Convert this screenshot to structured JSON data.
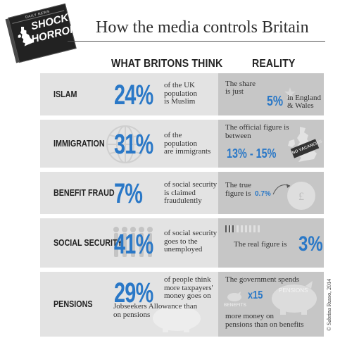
{
  "header": {
    "logo": {
      "paper_label": "DAILY NEWS",
      "shock": "SHOCK!",
      "horror": "HORROR!"
    },
    "title": "How the media controls Britain"
  },
  "columns": {
    "left": "WHAT BRITONS THINK",
    "right": "REALITY"
  },
  "rows": [
    {
      "category": "ISLAM",
      "think_pct": "24%",
      "think_desc": [
        "of the UK",
        "population",
        "is Muslim"
      ],
      "reality_a": "The share",
      "reality_b": "is just",
      "reality_value": "5%",
      "reality_c": "in England",
      "reality_d": "& Wales"
    },
    {
      "category": "IMMIGRATION",
      "think_pct": "31%",
      "think_desc": [
        "of the",
        "population",
        "are immigrants"
      ],
      "reality_a": "The official figure is",
      "reality_b": "between",
      "reality_value": "13% - 15%",
      "sign": "NO VACANCIES"
    },
    {
      "category": "BENEFIT FRAUD",
      "think_pct": "7%",
      "think_desc": [
        "of social security",
        "is claimed",
        "fraudulently"
      ],
      "reality_a": "The true",
      "reality_b": "figure is",
      "reality_value": "0.7%"
    },
    {
      "category": "SOCIAL SECURITY",
      "think_pct": "41%",
      "think_desc": [
        "of social security",
        "goes to the",
        "unemployed"
      ],
      "reality_a": "The real figure is",
      "reality_value": "3%"
    },
    {
      "category": "PENSIONS",
      "think_pct": "29%",
      "think_desc": [
        "of people think",
        "more taxpayers'",
        "money goes on",
        "Jobseekers Allowance than",
        "on pensions"
      ],
      "reality_a": "The government spends",
      "reality_value": "x15",
      "pig_label": "PENSIONS",
      "small_pig_label": "BENEFITS",
      "reality_c": "more money on",
      "reality_d": "pensions than on benefits"
    }
  ],
  "credit": "© Sabrina Russo, 2014",
  "colors": {
    "accent": "#2a78c7",
    "left_panel": "#e3e3e3",
    "right_panel": "#c6c6c6"
  }
}
